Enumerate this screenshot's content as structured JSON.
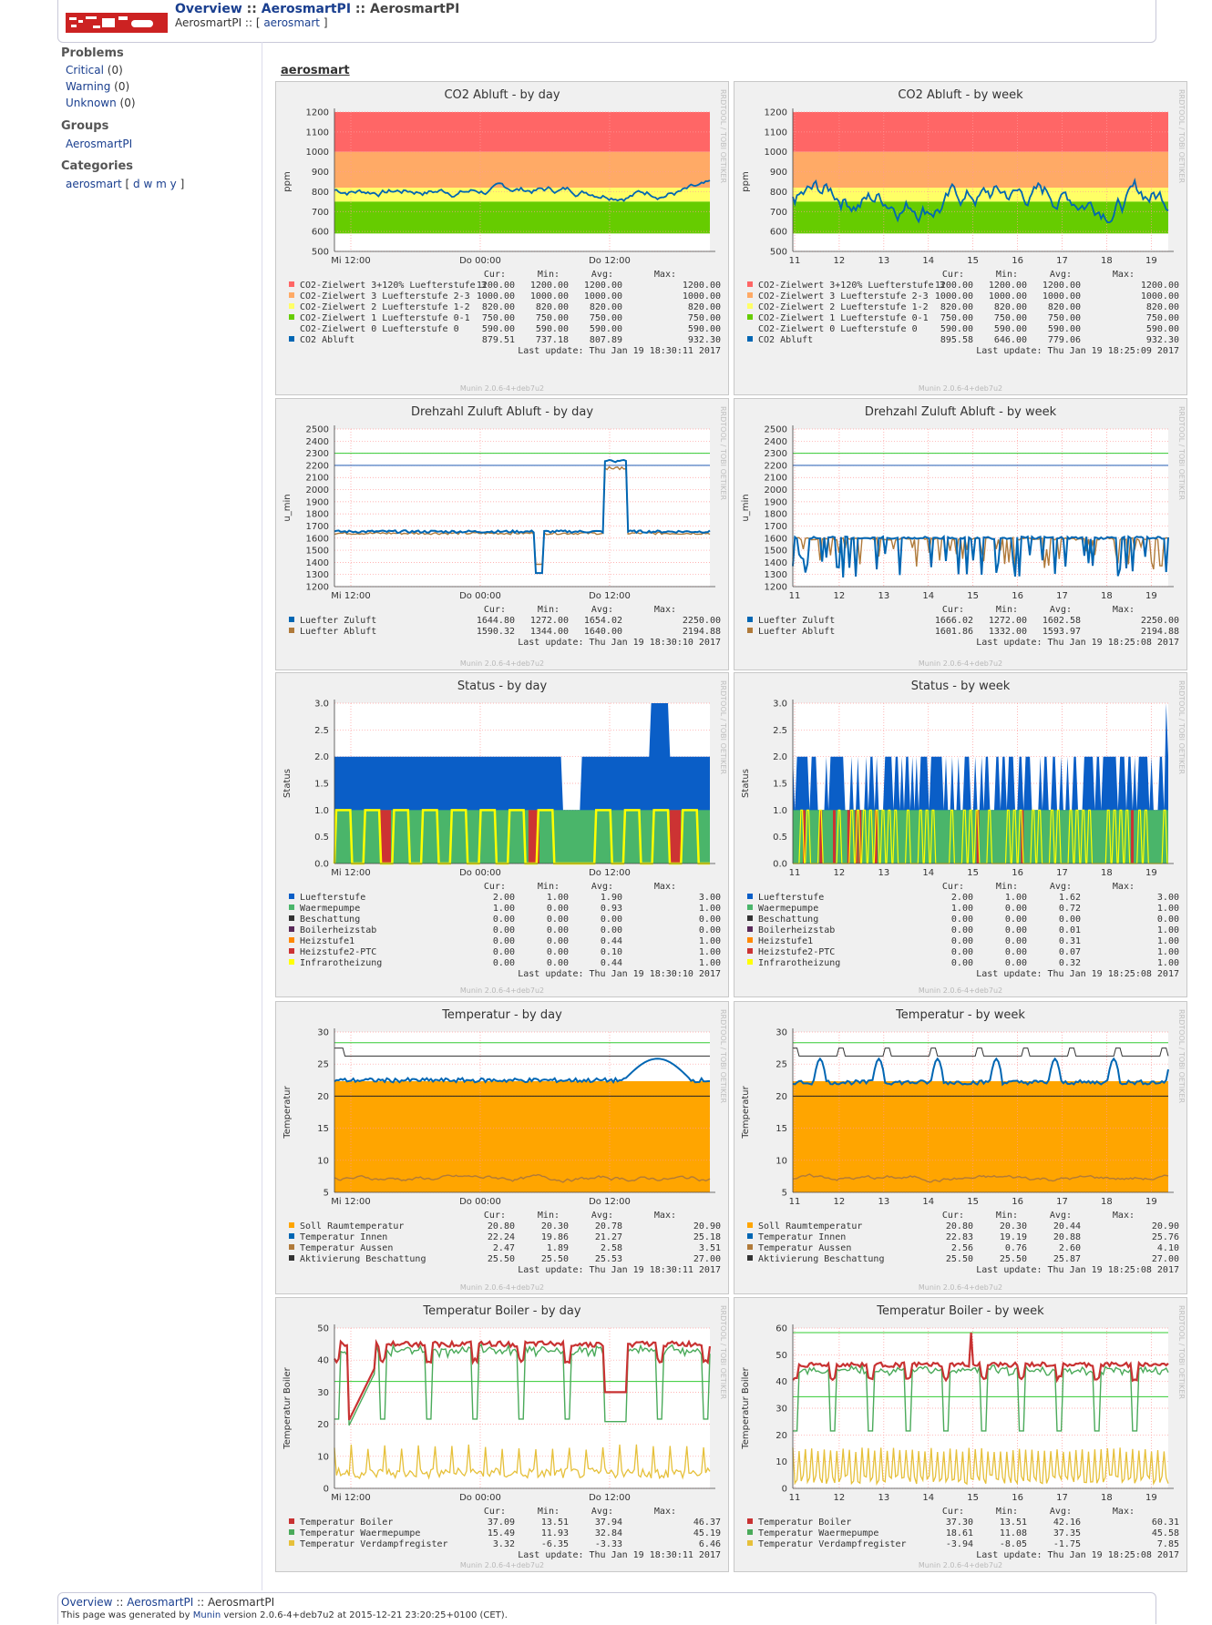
{
  "header": {
    "overview": "Overview",
    "sep1": " :: ",
    "group": "AerosmartPI",
    "sep2": " :: ",
    "host": "AerosmartPI",
    "sub_prefix": "AerosmartPI :: [ ",
    "sub_link": "aerosmart",
    "sub_suffix": " ]"
  },
  "sidebar": {
    "problems_title": "Problems",
    "critical_label": "Critical",
    "critical_count": " (0)",
    "warning_label": "Warning",
    "warning_count": " (0)",
    "unknown_label": "Unknown",
    "unknown_count": " (0)",
    "groups_title": "Groups",
    "group_link": "AerosmartPI",
    "categories_title": "Categories",
    "category_link": "aerosmart",
    "cat_open": " [ ",
    "cat_d": "d",
    "cat_w": "w",
    "cat_m": "m",
    "cat_y": "y",
    "cat_close": " ]"
  },
  "section_title": "aerosmart",
  "footer": {
    "overview": "Overview",
    "sep1": " :: ",
    "group": "AerosmartPI",
    "sep2": " :: ",
    "host": "AerosmartPI",
    "gen_prefix": "This page was generated by ",
    "munin": "Munin",
    "gen_suffix": " version 2.0.6-4+deb7u2 at 2015-12-21 23:20:25+0100 (CET)."
  },
  "graph_text": {
    "watermark": "RRDTOOL / TOBI OETIKER",
    "version": "Munin 2.0.6-4+deb7u2",
    "cur": "Cur:",
    "min": "Min:",
    "avg": "Avg:",
    "max": "Max:"
  },
  "colors": {
    "red": "#ff6666",
    "orange": "#ffaa66",
    "yellow": "#ffff66",
    "green": "#66cc00",
    "blue": "#0066b3",
    "brown": "#b07a3a",
    "status_blue": "#0a5ec7",
    "status_green": "#4ab56a",
    "status_red": "#cc3333",
    "status_yellow": "#ffff00",
    "temp_orange": "#ffa500",
    "boiler_red": "#c83232",
    "boiler_green": "#4aaa5a",
    "boiler_yellow": "#e6c03a"
  },
  "graphs": [
    {
      "id": "co2-day",
      "title": "CO2 Abluft - by day",
      "ylabel": "ppm",
      "y_ticks": [
        "1200",
        "1100",
        "1000",
        "900",
        "800",
        "700",
        "600",
        "500"
      ],
      "x_ticks": [
        "Mi 12:00",
        "Do 00:00",
        "Do 12:00"
      ],
      "legend": [
        {
          "name": "CO2-Zielwert 3+120% Luefterstufe 3",
          "color": "#ff6666",
          "cur": "1200.00",
          "min": "1200.00",
          "avg": "1200.00",
          "max": "1200.00"
        },
        {
          "name": "CO2-Zielwert 3 Luefterstufe 2-3",
          "color": "#ffaa66",
          "cur": "1000.00",
          "min": "1000.00",
          "avg": "1000.00",
          "max": "1000.00"
        },
        {
          "name": "CO2-Zielwert 2 Luefterstufe 1-2",
          "color": "#ffff66",
          "cur": "820.00",
          "min": "820.00",
          "avg": "820.00",
          "max": "820.00"
        },
        {
          "name": "CO2-Zielwert 1 Luefterstufe 0-1",
          "color": "#66cc00",
          "cur": "750.00",
          "min": "750.00",
          "avg": "750.00",
          "max": "750.00"
        },
        {
          "name": "CO2-Zielwert 0 Luefterstufe 0",
          "color": "",
          "cur": "590.00",
          "min": "590.00",
          "avg": "590.00",
          "max": "590.00"
        },
        {
          "name": "CO2 Abluft",
          "color": "#0066b3",
          "cur": "879.51",
          "min": "737.18",
          "avg": "807.89",
          "max": "932.30"
        }
      ],
      "last_update": "Last update:  Thu Jan 19 18:30:11 2017"
    },
    {
      "id": "co2-week",
      "title": "CO2 Abluft - by week",
      "ylabel": "ppm",
      "y_ticks": [
        "1200",
        "1100",
        "1000",
        "900",
        "800",
        "700",
        "600",
        "500"
      ],
      "x_ticks": [
        "11",
        "12",
        "13",
        "14",
        "15",
        "16",
        "17",
        "18",
        "19"
      ],
      "legend": [
        {
          "name": "CO2-Zielwert 3+120% Luefterstufe 3",
          "color": "#ff6666",
          "cur": "1200.00",
          "min": "1200.00",
          "avg": "1200.00",
          "max": "1200.00"
        },
        {
          "name": "CO2-Zielwert 3 Luefterstufe 2-3",
          "color": "#ffaa66",
          "cur": "1000.00",
          "min": "1000.00",
          "avg": "1000.00",
          "max": "1000.00"
        },
        {
          "name": "CO2-Zielwert 2 Luefterstufe 1-2",
          "color": "#ffff66",
          "cur": "820.00",
          "min": "820.00",
          "avg": "820.00",
          "max": "820.00"
        },
        {
          "name": "CO2-Zielwert 1 Luefterstufe 0-1",
          "color": "#66cc00",
          "cur": "750.00",
          "min": "750.00",
          "avg": "750.00",
          "max": "750.00"
        },
        {
          "name": "CO2-Zielwert 0 Luefterstufe 0",
          "color": "",
          "cur": "590.00",
          "min": "590.00",
          "avg": "590.00",
          "max": "590.00"
        },
        {
          "name": "CO2 Abluft",
          "color": "#0066b3",
          "cur": "895.58",
          "min": "646.00",
          "avg": "779.06",
          "max": "932.30"
        }
      ],
      "last_update": "Last update:  Thu Jan 19 18:25:09 2017"
    },
    {
      "id": "fan-day",
      "title": "Drehzahl Zuluft Abluft - by day",
      "ylabel": "u_min",
      "y_ticks": [
        "2500",
        "2400",
        "2300",
        "2200",
        "2100",
        "2000",
        "1900",
        "1800",
        "1700",
        "1600",
        "1500",
        "1400",
        "1300",
        "1200"
      ],
      "x_ticks": [
        "Mi 12:00",
        "Do 00:00",
        "Do 12:00"
      ],
      "legend": [
        {
          "name": "Luefter Zuluft",
          "color": "#0066b3",
          "cur": "1644.80",
          "min": "1272.00",
          "avg": "1654.02",
          "max": "2250.00"
        },
        {
          "name": "Luefter Abluft",
          "color": "#b07a3a",
          "cur": "1590.32",
          "min": "1344.00",
          "avg": "1640.00",
          "max": "2194.88"
        }
      ],
      "last_update": "Last update:  Thu Jan 19 18:30:10 2017"
    },
    {
      "id": "fan-week",
      "title": "Drehzahl Zuluft Abluft - by week",
      "ylabel": "u_min",
      "y_ticks": [
        "2500",
        "2400",
        "2300",
        "2200",
        "2100",
        "2000",
        "1900",
        "1800",
        "1700",
        "1600",
        "1500",
        "1400",
        "1300",
        "1200"
      ],
      "x_ticks": [
        "11",
        "12",
        "13",
        "14",
        "15",
        "16",
        "17",
        "18",
        "19"
      ],
      "legend": [
        {
          "name": "Luefter Zuluft",
          "color": "#0066b3",
          "cur": "1666.02",
          "min": "1272.00",
          "avg": "1602.58",
          "max": "2250.00"
        },
        {
          "name": "Luefter Abluft",
          "color": "#b07a3a",
          "cur": "1601.86",
          "min": "1332.00",
          "avg": "1593.97",
          "max": "2194.88"
        }
      ],
      "last_update": "Last update:  Thu Jan 19 18:25:08 2017"
    },
    {
      "id": "status-day",
      "title": "Status - by day",
      "ylabel": "Status",
      "y_ticks": [
        "3.0",
        "2.5",
        "2.0",
        "1.5",
        "1.0",
        "0.5",
        "0.0"
      ],
      "x_ticks": [
        "Mi 12:00",
        "Do 00:00",
        "Do 12:00"
      ],
      "legend": [
        {
          "name": "Luefterstufe",
          "color": "#0a5ec7",
          "cur": "2.00",
          "min": "1.00",
          "avg": "1.90",
          "max": "3.00"
        },
        {
          "name": "Waermepumpe",
          "color": "#4ab56a",
          "cur": "1.00",
          "min": "0.00",
          "avg": "0.93",
          "max": "1.00"
        },
        {
          "name": "Beschattung",
          "color": "#333333",
          "cur": "0.00",
          "min": "0.00",
          "avg": "0.00",
          "max": "0.00"
        },
        {
          "name": "Boilerheizstab",
          "color": "#5a2a5a",
          "cur": "0.00",
          "min": "0.00",
          "avg": "0.00",
          "max": "0.00"
        },
        {
          "name": "Heizstufe1",
          "color": "#ff8800",
          "cur": "0.00",
          "min": "0.00",
          "avg": "0.44",
          "max": "1.00"
        },
        {
          "name": "Heizstufe2-PTC",
          "color": "#cc3333",
          "cur": "0.00",
          "min": "0.00",
          "avg": "0.10",
          "max": "1.00"
        },
        {
          "name": "Infrarotheizung",
          "color": "#ffff00",
          "cur": "0.00",
          "min": "0.00",
          "avg": "0.44",
          "max": "1.00"
        }
      ],
      "last_update": "Last update:  Thu Jan 19 18:30:10 2017"
    },
    {
      "id": "status-week",
      "title": "Status - by week",
      "ylabel": "Status",
      "y_ticks": [
        "3.0",
        "2.5",
        "2.0",
        "1.5",
        "1.0",
        "0.5",
        "0.0"
      ],
      "x_ticks": [
        "11",
        "12",
        "13",
        "14",
        "15",
        "16",
        "17",
        "18",
        "19"
      ],
      "legend": [
        {
          "name": "Luefterstufe",
          "color": "#0a5ec7",
          "cur": "2.00",
          "min": "1.00",
          "avg": "1.62",
          "max": "3.00"
        },
        {
          "name": "Waermepumpe",
          "color": "#4ab56a",
          "cur": "1.00",
          "min": "0.00",
          "avg": "0.72",
          "max": "1.00"
        },
        {
          "name": "Beschattung",
          "color": "#333333",
          "cur": "0.00",
          "min": "0.00",
          "avg": "0.00",
          "max": "0.00"
        },
        {
          "name": "Boilerheizstab",
          "color": "#5a2a5a",
          "cur": "0.00",
          "min": "0.00",
          "avg": "0.01",
          "max": "1.00"
        },
        {
          "name": "Heizstufe1",
          "color": "#ff8800",
          "cur": "0.00",
          "min": "0.00",
          "avg": "0.31",
          "max": "1.00"
        },
        {
          "name": "Heizstufe2-PTC",
          "color": "#cc3333",
          "cur": "0.00",
          "min": "0.00",
          "avg": "0.07",
          "max": "1.00"
        },
        {
          "name": "Infrarotheizung",
          "color": "#ffff00",
          "cur": "0.00",
          "min": "0.00",
          "avg": "0.32",
          "max": "1.00"
        }
      ],
      "last_update": "Last update:  Thu Jan 19 18:25:08 2017"
    },
    {
      "id": "temp-day",
      "title": "Temperatur - by day",
      "ylabel": "Temperatur",
      "y_ticks": [
        "30",
        "25",
        "20",
        "15",
        "10",
        "5"
      ],
      "x_ticks": [
        "Mi 12:00",
        "Do 00:00",
        "Do 12:00"
      ],
      "legend": [
        {
          "name": "Soll Raumtemperatur",
          "color": "#ffa500",
          "cur": "20.80",
          "min": "20.30",
          "avg": "20.78",
          "max": "20.90"
        },
        {
          "name": "Temperatur Innen",
          "color": "#0066b3",
          "cur": "22.24",
          "min": "19.86",
          "avg": "21.27",
          "max": "25.18"
        },
        {
          "name": "Temperatur Aussen",
          "color": "#b07a3a",
          "cur": "2.47",
          "min": "1.89",
          "avg": "2.58",
          "max": "3.51"
        },
        {
          "name": "Aktivierung Beschattung",
          "color": "#333333",
          "cur": "25.50",
          "min": "25.50",
          "avg": "25.53",
          "max": "27.00"
        }
      ],
      "last_update": "Last update:  Thu Jan 19 18:30:11 2017"
    },
    {
      "id": "temp-week",
      "title": "Temperatur - by week",
      "ylabel": "Temperatur",
      "y_ticks": [
        "30",
        "25",
        "20",
        "15",
        "10",
        "5"
      ],
      "x_ticks": [
        "11",
        "12",
        "13",
        "14",
        "15",
        "16",
        "17",
        "18",
        "19"
      ],
      "legend": [
        {
          "name": "Soll Raumtemperatur",
          "color": "#ffa500",
          "cur": "20.80",
          "min": "20.30",
          "avg": "20.44",
          "max": "20.90"
        },
        {
          "name": "Temperatur Innen",
          "color": "#0066b3",
          "cur": "22.83",
          "min": "19.19",
          "avg": "20.88",
          "max": "25.76"
        },
        {
          "name": "Temperatur Aussen",
          "color": "#b07a3a",
          "cur": "2.56",
          "min": "0.76",
          "avg": "2.60",
          "max": "4.10"
        },
        {
          "name": "Aktivierung Beschattung",
          "color": "#333333",
          "cur": "25.50",
          "min": "25.50",
          "avg": "25.87",
          "max": "27.00"
        }
      ],
      "last_update": "Last update:  Thu Jan 19 18:25:08 2017"
    },
    {
      "id": "boiler-day",
      "title": "Temperatur Boiler - by day",
      "ylabel": "Temperatur Boiler",
      "y_ticks": [
        "50",
        "40",
        "30",
        "20",
        "10",
        "0"
      ],
      "x_ticks": [
        "Mi 12:00",
        "Do 00:00",
        "Do 12:00"
      ],
      "legend": [
        {
          "name": "Temperatur Boiler",
          "color": "#c83232",
          "cur": "37.09",
          "min": "13.51",
          "avg": "37.94",
          "max": "46.37"
        },
        {
          "name": "Temperatur Waermepumpe",
          "color": "#4aaa5a",
          "cur": "15.49",
          "min": "11.93",
          "avg": "32.84",
          "max": "45.19"
        },
        {
          "name": "Temperatur Verdampfregister",
          "color": "#e6c03a",
          "cur": "3.32",
          "min": "-6.35",
          "avg": "-3.33",
          "max": "6.46"
        }
      ],
      "last_update": "Last update:  Thu Jan 19 18:30:11 2017"
    },
    {
      "id": "boiler-week",
      "title": "Temperatur Boiler - by week",
      "ylabel": "Temperatur Boiler",
      "y_ticks": [
        "60",
        "50",
        "40",
        "30",
        "20",
        "10",
        "0"
      ],
      "x_ticks": [
        "11",
        "12",
        "13",
        "14",
        "15",
        "16",
        "17",
        "18",
        "19"
      ],
      "legend": [
        {
          "name": "Temperatur Boiler",
          "color": "#c83232",
          "cur": "37.30",
          "min": "13.51",
          "avg": "42.16",
          "max": "60.31"
        },
        {
          "name": "Temperatur Waermepumpe",
          "color": "#4aaa5a",
          "cur": "18.61",
          "min": "11.08",
          "avg": "37.35",
          "max": "45.58"
        },
        {
          "name": "Temperatur Verdampfregister",
          "color": "#e6c03a",
          "cur": "-3.94",
          "min": "-8.05",
          "avg": "-1.75",
          "max": "7.85"
        }
      ],
      "last_update": "Last update:  Thu Jan 19 18:25:08 2017"
    }
  ]
}
